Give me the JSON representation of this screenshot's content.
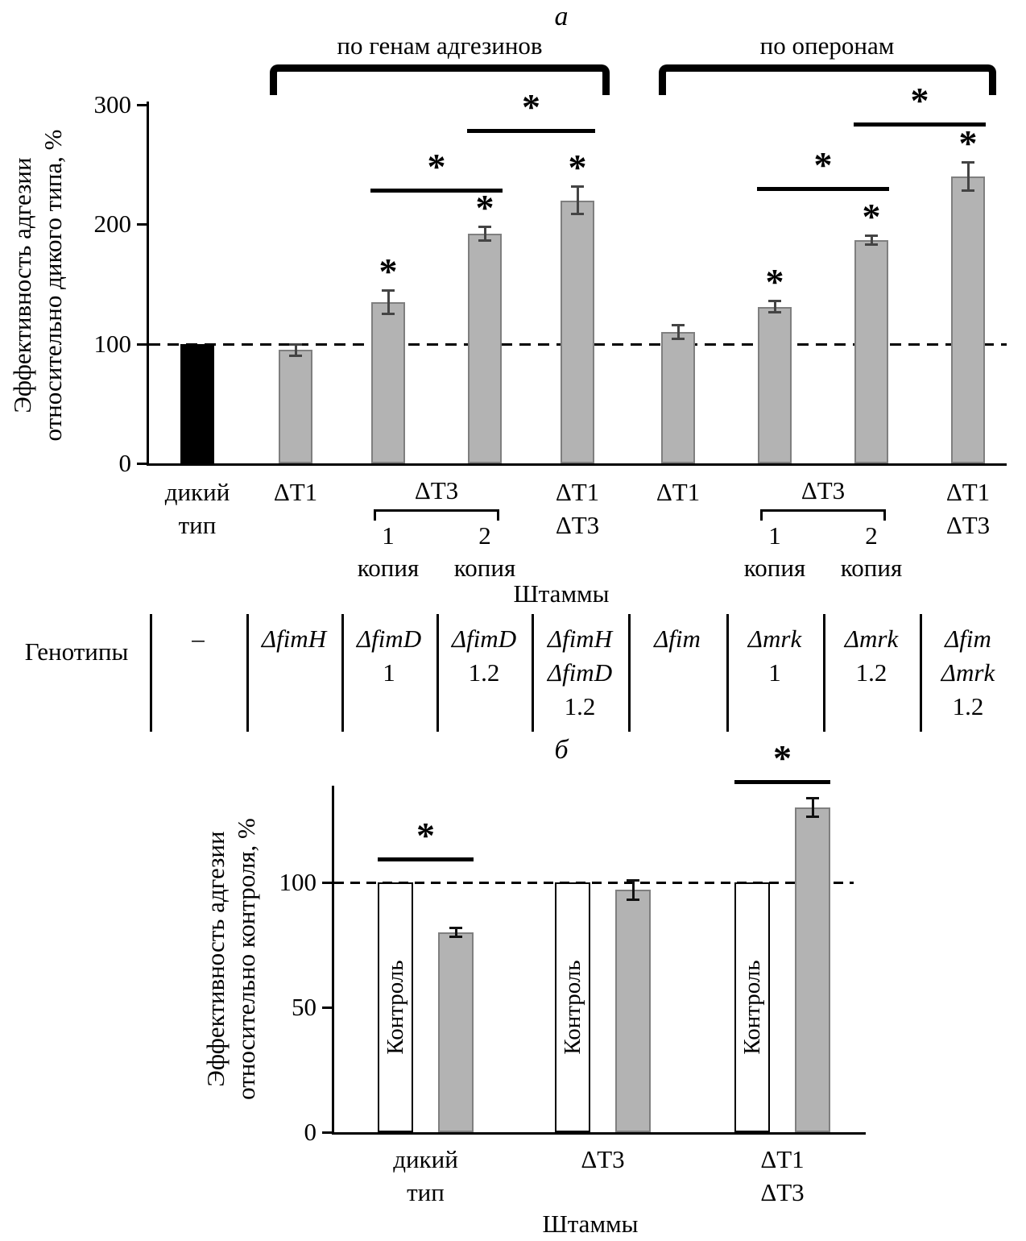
{
  "chart_data": [
    {
      "id": "panel_a",
      "type": "bar",
      "panel_label": "а",
      "ylabel_lines": [
        "Эффективность адгезии",
        "относительно дикого типа, %"
      ],
      "ylim": [
        0,
        300
      ],
      "yticks": [
        0,
        100,
        200,
        300
      ],
      "reference_line": 100,
      "xlabel": "Штаммы",
      "group_brackets": [
        "по генам адгезинов",
        "по оперонам"
      ],
      "bar_color_gray": "#b3b3b3",
      "bar_color_black": "#000000",
      "bars": [
        {
          "category": "дикий тип",
          "value": 100,
          "error": 0,
          "color": "#000000",
          "significant": false
        },
        {
          "category": "ΔТ1",
          "value": 95,
          "error": 5,
          "color": "#b3b3b3",
          "significant": false
        },
        {
          "category": "ΔТ3 1 копия",
          "value": 135,
          "error": 10,
          "color": "#b3b3b3",
          "significant": true
        },
        {
          "category": "ΔТ3 2 копия",
          "value": 192,
          "error": 6,
          "color": "#b3b3b3",
          "significant": true
        },
        {
          "category": "ΔТ1 ΔТ3",
          "value": 220,
          "error": 12,
          "color": "#b3b3b3",
          "significant": true
        },
        {
          "category": "ΔТ1",
          "value": 110,
          "error": 6,
          "color": "#b3b3b3",
          "significant": false
        },
        {
          "category": "ΔТ3 1 копия",
          "value": 131,
          "error": 5,
          "color": "#b3b3b3",
          "significant": true
        },
        {
          "category": "ΔТ3 2 копия",
          "value": 187,
          "error": 4,
          "color": "#b3b3b3",
          "significant": true
        },
        {
          "category": "ΔТ1 ΔТ3",
          "value": 240,
          "error": 12,
          "color": "#b3b3b3",
          "significant": true
        }
      ],
      "x_labels": [
        {
          "type": "single",
          "bar": 0,
          "lines": [
            "дикий",
            "тип"
          ]
        },
        {
          "type": "single",
          "bar": 1,
          "lines": [
            "ΔТ1"
          ]
        },
        {
          "type": "group",
          "bars": [
            2,
            3
          ],
          "label": "ΔТ3",
          "numbers": [
            "1",
            "2"
          ],
          "word": "копия"
        },
        {
          "type": "single",
          "bar": 4,
          "lines": [
            "ΔТ1",
            "ΔТ3"
          ]
        },
        {
          "type": "single",
          "bar": 5,
          "lines": [
            "ΔТ1"
          ]
        },
        {
          "type": "group",
          "bars": [
            6,
            7
          ],
          "label": "ΔТ3",
          "numbers": [
            "1",
            "2"
          ],
          "word": "копия"
        },
        {
          "type": "single",
          "bar": 8,
          "lines": [
            "ΔТ1",
            "ΔТ3"
          ]
        }
      ],
      "comparisons": [
        {
          "from": 2,
          "to": 3,
          "level": 230,
          "label": "*"
        },
        {
          "from": 3,
          "to": 4,
          "level": 280,
          "label": "*"
        },
        {
          "from": 6,
          "to": 7,
          "level": 231,
          "label": "*"
        },
        {
          "from": 7,
          "to": 8,
          "level": 285,
          "label": "*"
        }
      ]
    },
    {
      "id": "panel_b",
      "type": "bar",
      "panel_label": "б",
      "ylabel_lines": [
        "Эффективность адгезии",
        "относительно контроля, %"
      ],
      "ylim": [
        0,
        140
      ],
      "yticks": [
        0,
        50,
        100
      ],
      "reference_line": 100,
      "xlabel": "Штаммы",
      "sig_label": "*",
      "groups": [
        {
          "label_lines": [
            "дикий",
            "тип"
          ],
          "control_label": "Контроль",
          "control_value": 100,
          "value": 80,
          "error": 2,
          "significant": true,
          "sig_level": 110
        },
        {
          "label_lines": [
            "ΔТ3"
          ],
          "control_label": "Контроль",
          "control_value": 100,
          "value": 97,
          "error": 4,
          "significant": false,
          "sig_level": 0
        },
        {
          "label_lines": [
            "ΔТ1",
            "ΔТ3"
          ],
          "control_label": "Контроль",
          "control_value": 100,
          "value": 130,
          "error": 4,
          "significant": true,
          "sig_level": 141
        }
      ]
    }
  ],
  "genotype_table": {
    "header": "Генотипы",
    "cells": [
      [
        "–"
      ],
      [
        "ΔfimH"
      ],
      [
        "ΔfimD",
        "1"
      ],
      [
        "ΔfimD",
        "1.2"
      ],
      [
        "ΔfimH",
        "ΔfimD",
        "1.2"
      ],
      [
        "Δfim"
      ],
      [
        "Δmrk",
        "1"
      ],
      [
        "Δmrk",
        "1.2"
      ],
      [
        "Δfim",
        "Δmrk",
        "1.2"
      ]
    ]
  }
}
